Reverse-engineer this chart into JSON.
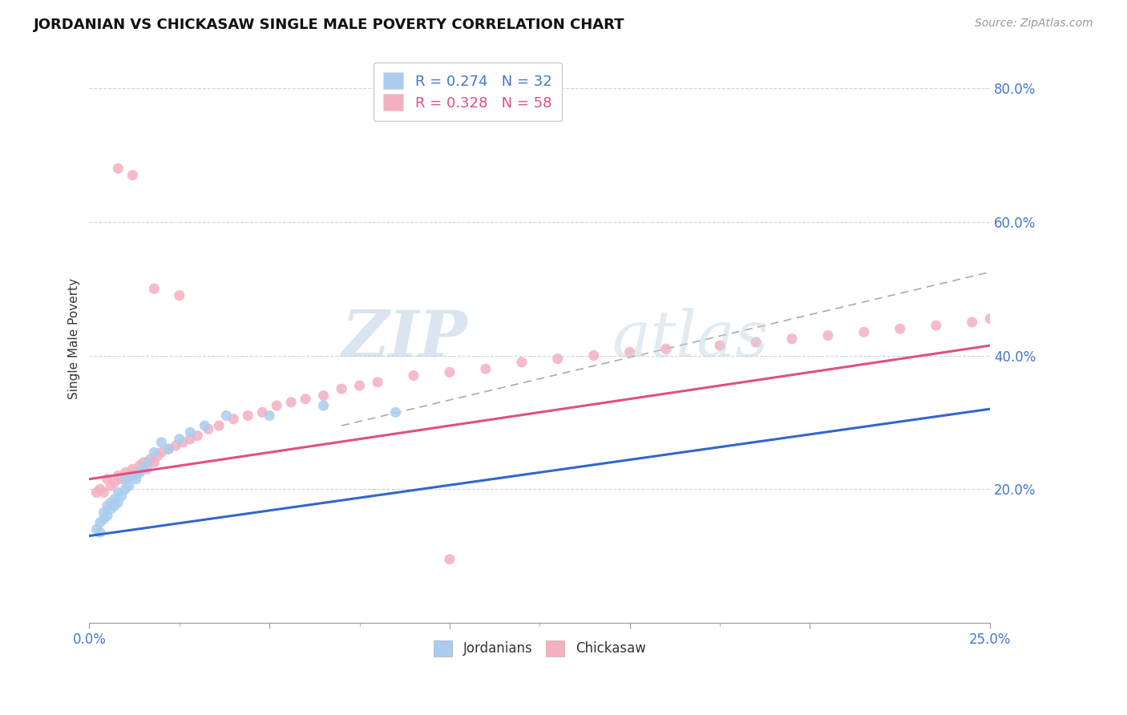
{
  "title": "JORDANIAN VS CHICKASAW SINGLE MALE POVERTY CORRELATION CHART",
  "source": "Source: ZipAtlas.com",
  "ylabel": "Single Male Poverty",
  "xlim": [
    0.0,
    0.25
  ],
  "ylim": [
    0.0,
    0.85
  ],
  "xticks": [
    0.0,
    0.05,
    0.1,
    0.15,
    0.2,
    0.25
  ],
  "xticklabels": [
    "0.0%",
    "",
    "",
    "",
    "",
    "25.0%"
  ],
  "ytick_positions": [
    0.2,
    0.4,
    0.6,
    0.8
  ],
  "ytick_labels": [
    "20.0%",
    "40.0%",
    "60.0%",
    "80.0%"
  ],
  "legend_entries": [
    {
      "label": "R = 0.274   N = 32",
      "color": "#aaccee"
    },
    {
      "label": "R = 0.328   N = 58",
      "color": "#f4b0c0"
    }
  ],
  "jordanians_color": "#aaccee",
  "chickasaw_color": "#f4b0c0",
  "jordanians_line_color": "#3366cc",
  "chickasaw_line_color": "#e05080",
  "reference_line_color": "#aaaaaa",
  "watermark": "ZIPatlas",
  "watermark_color": "#c8d8e8",
  "background_color": "#ffffff",
  "grid_color": "#c8d4e8",
  "jordanians_x": [
    0.002,
    0.003,
    0.003,
    0.004,
    0.004,
    0.005,
    0.005,
    0.006,
    0.006,
    0.007,
    0.007,
    0.008,
    0.008,
    0.009,
    0.01,
    0.01,
    0.011,
    0.012,
    0.013,
    0.014,
    0.015,
    0.016,
    0.018,
    0.02,
    0.022,
    0.025,
    0.028,
    0.032,
    0.038,
    0.05,
    0.065,
    0.085
  ],
  "jordanians_y": [
    0.14,
    0.135,
    0.15,
    0.155,
    0.165,
    0.16,
    0.175,
    0.17,
    0.18,
    0.175,
    0.185,
    0.18,
    0.195,
    0.19,
    0.2,
    0.215,
    0.205,
    0.22,
    0.215,
    0.225,
    0.23,
    0.24,
    0.255,
    0.27,
    0.26,
    0.275,
    0.285,
    0.295,
    0.31,
    0.31,
    0.325,
    0.315
  ],
  "chickasaw_x": [
    0.002,
    0.003,
    0.004,
    0.005,
    0.006,
    0.007,
    0.008,
    0.009,
    0.01,
    0.011,
    0.012,
    0.013,
    0.014,
    0.015,
    0.016,
    0.017,
    0.018,
    0.019,
    0.02,
    0.022,
    0.024,
    0.026,
    0.028,
    0.03,
    0.033,
    0.036,
    0.04,
    0.044,
    0.048,
    0.052,
    0.056,
    0.06,
    0.065,
    0.07,
    0.075,
    0.08,
    0.09,
    0.1,
    0.11,
    0.12,
    0.13,
    0.14,
    0.15,
    0.16,
    0.175,
    0.185,
    0.195,
    0.205,
    0.215,
    0.225,
    0.235,
    0.245,
    0.25,
    0.008,
    0.012,
    0.018,
    0.025,
    0.1
  ],
  "chickasaw_y": [
    0.195,
    0.2,
    0.195,
    0.215,
    0.205,
    0.21,
    0.22,
    0.215,
    0.225,
    0.22,
    0.23,
    0.225,
    0.235,
    0.24,
    0.23,
    0.245,
    0.24,
    0.25,
    0.255,
    0.26,
    0.265,
    0.27,
    0.275,
    0.28,
    0.29,
    0.295,
    0.305,
    0.31,
    0.315,
    0.325,
    0.33,
    0.335,
    0.34,
    0.35,
    0.355,
    0.36,
    0.37,
    0.375,
    0.38,
    0.39,
    0.395,
    0.4,
    0.405,
    0.41,
    0.415,
    0.42,
    0.425,
    0.43,
    0.435,
    0.44,
    0.445,
    0.45,
    0.455,
    0.68,
    0.67,
    0.5,
    0.49,
    0.095
  ],
  "jordanian_line_x0": 0.0,
  "jordanian_line_y0": 0.13,
  "jordanian_line_x1": 0.25,
  "jordanian_line_y1": 0.32,
  "chickasaw_line_x0": 0.0,
  "chickasaw_line_y0": 0.215,
  "chickasaw_line_x1": 0.25,
  "chickasaw_line_y1": 0.415,
  "ref_line_x0": 0.07,
  "ref_line_y0": 0.295,
  "ref_line_x1": 0.25,
  "ref_line_y1": 0.525
}
